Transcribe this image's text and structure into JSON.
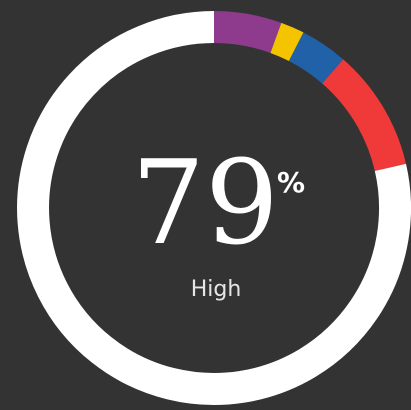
{
  "gauge": {
    "value": "79",
    "unit": "%",
    "label": "High"
  }
}
